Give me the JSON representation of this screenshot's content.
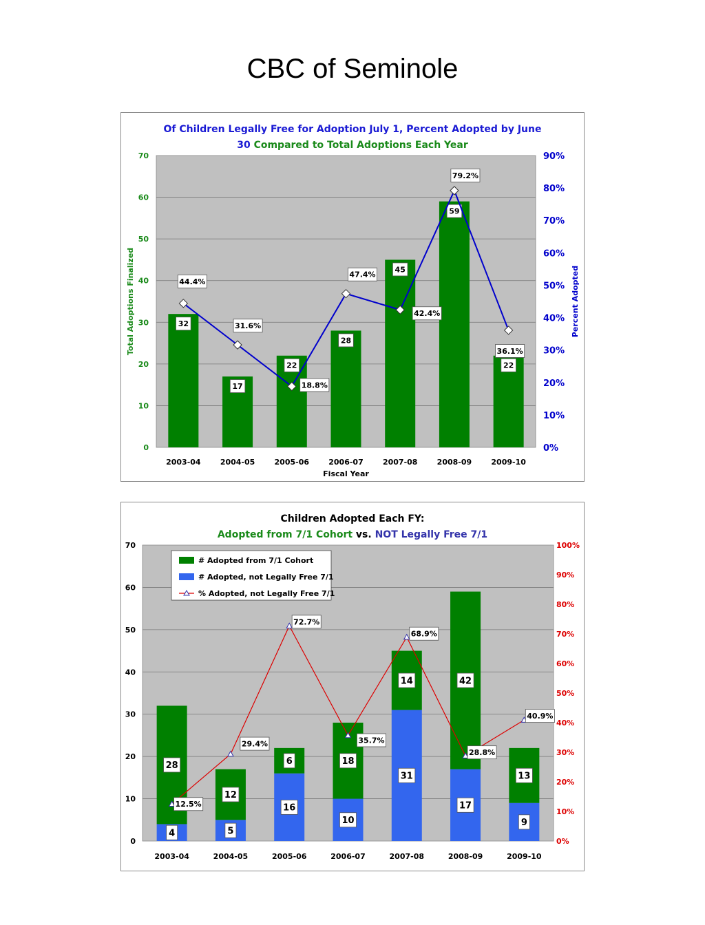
{
  "page": {
    "title": "CBC of Seminole"
  },
  "chart_data": [
    {
      "type": "bar",
      "title_parts": [
        {
          "text": "Of Children Legally Free for Adoption July 1, Percent Adopted by June",
          "color": "#1a1ad4"
        },
        {
          "text": "30",
          "color": "#1a1ad4"
        },
        {
          "text": "Compared to Total Adoptions Each Year",
          "color": "#1a8a1a"
        }
      ],
      "xlabel": "Fiscal Year",
      "ylabel": "Total Adoptions Finalized",
      "y2label": "Percent Adopted",
      "categories": [
        "2003-04",
        "2004-05",
        "2005-06",
        "2006-07",
        "2007-08",
        "2008-09",
        "2009-10"
      ],
      "ylim": [
        0,
        70
      ],
      "y_ticks": [
        "0",
        "10",
        "20",
        "30",
        "40",
        "50",
        "60",
        "70"
      ],
      "y2lim": [
        0,
        90
      ],
      "y2_ticks": [
        "0%",
        "10%",
        "20%",
        "30%",
        "40%",
        "50%",
        "60%",
        "70%",
        "80%",
        "90%"
      ],
      "series": [
        {
          "kind": "bar",
          "values": [
            32,
            17,
            22,
            28,
            45,
            59,
            22
          ],
          "labels": [
            "32",
            "17",
            "22",
            "28",
            "45",
            "59",
            "22"
          ],
          "color": "#008000"
        },
        {
          "kind": "line",
          "axis": "right",
          "values": [
            44.4,
            31.6,
            18.8,
            47.4,
            42.4,
            79.2,
            36.1
          ],
          "labels": [
            "44.4%",
            "31.6%",
            "18.8%",
            "47.4%",
            "42.4%",
            "79.2%",
            "36.1%"
          ],
          "color": "#0000cc",
          "marker": "diamond"
        }
      ],
      "grid": true,
      "plot_bg": "#c0c0c0"
    },
    {
      "type": "bar",
      "stacked": true,
      "title_line1": "Children Adopted Each FY:",
      "title_parts": [
        {
          "text": "Adopted from 7/1 Cohort",
          "color": "#1a8a1a"
        },
        {
          "text": "vs.",
          "color": "#000000"
        },
        {
          "text": "NOT Legally Free 7/1",
          "color": "#3333aa"
        }
      ],
      "categories": [
        "2003-04",
        "2004-05",
        "2005-06",
        "2006-07",
        "2007-08",
        "2008-09",
        "2009-10"
      ],
      "ylim": [
        0,
        70
      ],
      "y_ticks": [
        "0",
        "10",
        "20",
        "30",
        "40",
        "50",
        "60",
        "70"
      ],
      "y2lim": [
        0,
        100
      ],
      "y2_ticks": [
        "0%",
        "10%",
        "20%",
        "30%",
        "40%",
        "50%",
        "60%",
        "70%",
        "80%",
        "90%",
        "100%"
      ],
      "series": [
        {
          "name": "# Adopted from 7/1 Cohort",
          "kind": "bar",
          "values": [
            28,
            12,
            6,
            18,
            14,
            42,
            13
          ],
          "labels": [
            "28",
            "12",
            "6",
            "18",
            "14",
            "42",
            "13"
          ],
          "color": "#008000"
        },
        {
          "name": "# Adopted, not Legally Free 7/1",
          "kind": "bar",
          "values": [
            4,
            5,
            16,
            10,
            31,
            17,
            9
          ],
          "labels": [
            "4",
            "5",
            "16",
            "10",
            "31",
            "17",
            "9"
          ],
          "color": "#3366ee"
        },
        {
          "name": "% Adopted, not Legally Free 7/1",
          "kind": "line",
          "axis": "right",
          "values": [
            12.5,
            29.4,
            72.7,
            35.7,
            68.9,
            28.8,
            40.9
          ],
          "labels": [
            "12.5%",
            "29.4%",
            "72.7%",
            "35.7%",
            "68.9%",
            "28.8%",
            "40.9%"
          ],
          "color": "#dd0000",
          "marker": "triangle"
        }
      ],
      "legend": "top-left",
      "grid": true,
      "plot_bg": "#c0c0c0"
    }
  ]
}
